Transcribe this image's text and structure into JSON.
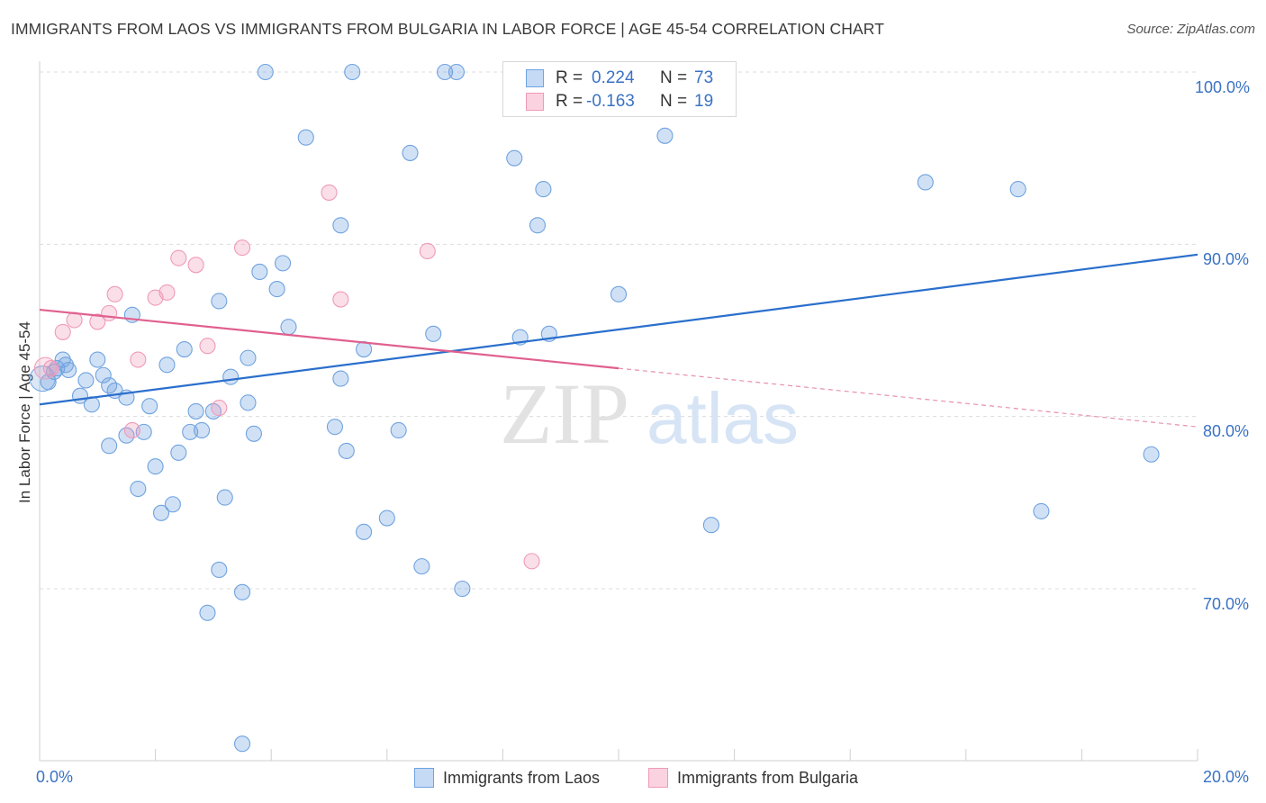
{
  "title": "IMMIGRANTS FROM LAOS VS IMMIGRANTS FROM BULGARIA IN LABOR FORCE | AGE 45-54 CORRELATION CHART",
  "source": "Source: ZipAtlas.com",
  "watermark": {
    "zip": "ZIP",
    "atlas": "atlas"
  },
  "colors": {
    "laos": "#6fa3e0",
    "laos_line": "#2a6fcc",
    "bulgaria": "#f09ab8",
    "bulgaria_line": "#e0608e",
    "axis_text": "#3a72c4"
  },
  "legend": {
    "laos": {
      "r_label": "R =",
      "r_value": "0.224",
      "n_label": "N =",
      "n_value": "73"
    },
    "bulgaria": {
      "r_label": "R =",
      "r_value": "-0.163",
      "n_label": "N =",
      "n_value": "19"
    }
  },
  "bottom_legend": {
    "laos": "Immigrants from Laos",
    "bulgaria": "Immigrants from Bulgaria"
  },
  "chart_data": {
    "type": "scatter",
    "xlabel": "",
    "ylabel": "In Labor Force | Age 45-54",
    "x_tick_labels": [
      "0.0%",
      "20.0%"
    ],
    "y_tick_labels": [
      "100.0%",
      "90.0%",
      "80.0%",
      "70.0%"
    ],
    "xlim": [
      0,
      20
    ],
    "ylim": [
      60.5,
      101
    ],
    "y_gridlines": [
      100,
      90,
      80,
      70
    ],
    "series": [
      {
        "name": "Immigrants from Laos",
        "points": [
          [
            3.9,
            100
          ],
          [
            5.4,
            100
          ],
          [
            7.0,
            100
          ],
          [
            7.2,
            100
          ],
          [
            4.6,
            96.2
          ],
          [
            6.4,
            95.3
          ],
          [
            8.2,
            95.0
          ],
          [
            10.8,
            96.3
          ],
          [
            8.7,
            93.2
          ],
          [
            15.3,
            93.6
          ],
          [
            16.9,
            93.2
          ],
          [
            5.2,
            91.1
          ],
          [
            8.6,
            91.1
          ],
          [
            3.8,
            88.4
          ],
          [
            4.2,
            88.9
          ],
          [
            4.1,
            87.4
          ],
          [
            3.1,
            86.7
          ],
          [
            10.0,
            87.1
          ],
          [
            1.6,
            85.9
          ],
          [
            4.3,
            85.2
          ],
          [
            6.8,
            84.8
          ],
          [
            8.3,
            84.6
          ],
          [
            8.8,
            84.8
          ],
          [
            0.4,
            83.3
          ],
          [
            0.3,
            82.8
          ],
          [
            0.5,
            82.7
          ],
          [
            1.0,
            83.3
          ],
          [
            2.5,
            83.9
          ],
          [
            3.6,
            83.4
          ],
          [
            2.2,
            83.0
          ],
          [
            5.6,
            83.9
          ],
          [
            0.8,
            82.1
          ],
          [
            1.2,
            81.8
          ],
          [
            3.3,
            82.3
          ],
          [
            5.2,
            82.2
          ],
          [
            1.3,
            81.5
          ],
          [
            0.7,
            81.2
          ],
          [
            0.9,
            80.7
          ],
          [
            1.5,
            81.1
          ],
          [
            1.9,
            80.6
          ],
          [
            3.6,
            80.8
          ],
          [
            2.7,
            80.3
          ],
          [
            3.0,
            80.3
          ],
          [
            5.1,
            79.4
          ],
          [
            6.2,
            79.2
          ],
          [
            1.5,
            78.9
          ],
          [
            1.8,
            79.1
          ],
          [
            2.6,
            79.1
          ],
          [
            2.8,
            79.2
          ],
          [
            3.7,
            79.0
          ],
          [
            1.2,
            78.3
          ],
          [
            2.4,
            77.9
          ],
          [
            5.3,
            78.0
          ],
          [
            19.2,
            77.8
          ],
          [
            2.0,
            77.1
          ],
          [
            1.7,
            75.8
          ],
          [
            3.2,
            75.3
          ],
          [
            2.3,
            74.9
          ],
          [
            2.1,
            74.4
          ],
          [
            6.0,
            74.1
          ],
          [
            17.3,
            74.5
          ],
          [
            11.6,
            73.7
          ],
          [
            5.6,
            73.3
          ],
          [
            3.1,
            71.1
          ],
          [
            6.6,
            71.3
          ],
          [
            3.5,
            69.8
          ],
          [
            7.3,
            70.0
          ],
          [
            2.9,
            68.6
          ],
          [
            3.5,
            61.0
          ],
          [
            0.15,
            82.0
          ],
          [
            0.25,
            82.6
          ],
          [
            0.45,
            83.0
          ],
          [
            1.1,
            82.4
          ]
        ]
      },
      {
        "name": "Immigrants from Bulgaria",
        "points": [
          [
            5.0,
            93.0
          ],
          [
            3.5,
            89.8
          ],
          [
            6.7,
            89.6
          ],
          [
            2.4,
            89.2
          ],
          [
            2.7,
            88.8
          ],
          [
            1.3,
            87.1
          ],
          [
            2.2,
            87.2
          ],
          [
            2.0,
            86.9
          ],
          [
            5.2,
            86.8
          ],
          [
            1.2,
            86.0
          ],
          [
            0.6,
            85.6
          ],
          [
            1.0,
            85.5
          ],
          [
            0.4,
            84.9
          ],
          [
            2.9,
            84.1
          ],
          [
            1.7,
            83.3
          ],
          [
            0.2,
            82.8
          ],
          [
            3.1,
            80.5
          ],
          [
            1.6,
            79.2
          ],
          [
            8.5,
            71.6
          ]
        ]
      }
    ],
    "trendlines": [
      {
        "name": "Immigrants from Laos",
        "x": [
          0,
          20
        ],
        "y": [
          80.7,
          89.4
        ]
      },
      {
        "name": "Immigrants from Bulgaria",
        "x": [
          0,
          10
        ],
        "y": [
          86.2,
          82.8
        ],
        "dashed_extension_to": [
          20,
          79.4
        ]
      }
    ]
  }
}
